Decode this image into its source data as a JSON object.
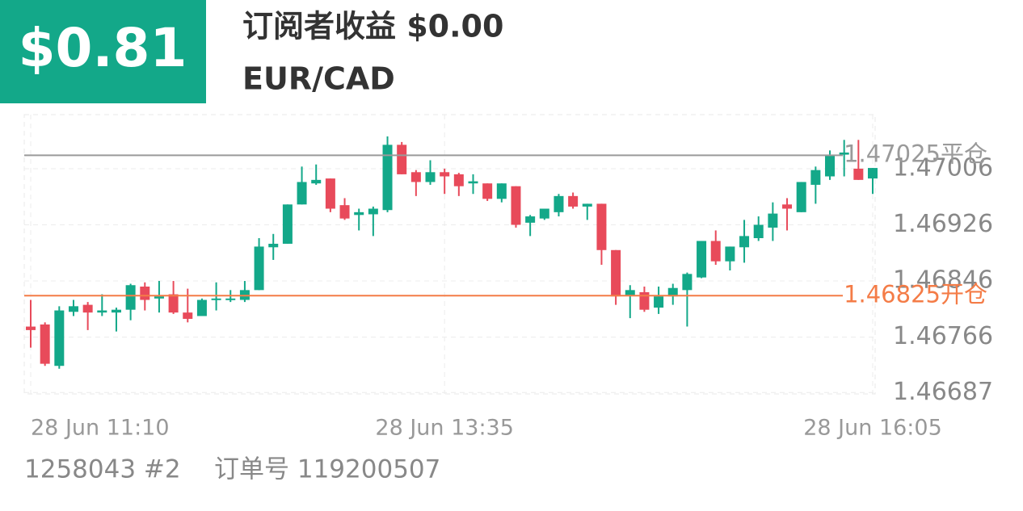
{
  "header": {
    "badge": "$0.81",
    "title": "订阅者收益 $0.00",
    "symbol": "EUR/CAD"
  },
  "chart_data": {
    "type": "candlestick",
    "categories": [
      "28 Jun 11:10",
      null,
      null,
      null,
      null,
      null,
      null,
      null,
      null,
      null,
      null,
      null,
      null,
      null,
      null,
      null,
      null,
      null,
      null,
      null,
      null,
      null,
      null,
      null,
      null,
      null,
      null,
      null,
      null,
      "28 Jun 13:35",
      null,
      null,
      null,
      null,
      null,
      null,
      null,
      null,
      null,
      null,
      null,
      null,
      null,
      null,
      null,
      null,
      null,
      null,
      null,
      null,
      null,
      null,
      null,
      null,
      null,
      null,
      null,
      null,
      null,
      "28 Jun 16:05"
    ],
    "open": [
      1.46781,
      1.46784,
      1.46725,
      1.46802,
      1.46812,
      1.46801,
      1.46801,
      1.46805,
      1.46838,
      1.46821,
      1.46827,
      1.46801,
      1.46796,
      1.46819,
      1.46819,
      1.46819,
      1.46833,
      1.46894,
      1.46899,
      1.46955,
      1.46985,
      1.46992,
      1.46954,
      1.4694,
      1.46941,
      1.46947,
      1.4704,
      1.47001,
      1.46987,
      1.47001,
      1.46998,
      1.46985,
      1.46985,
      1.46963,
      1.46981,
      1.46929,
      1.46935,
      1.46944,
      1.46967,
      1.46952,
      1.46956,
      1.4689,
      1.46826,
      1.4683,
      1.46808,
      1.46824,
      1.46833,
      1.46851,
      1.46903,
      1.46874,
      1.46894,
      1.46907,
      1.46922,
      1.46955,
      1.46944,
      1.46983,
      1.46995,
      1.47026,
      1.47006,
      1.46992
    ],
    "high": [
      1.46819,
      1.46787,
      1.4681,
      1.46819,
      1.46816,
      1.46827,
      1.46808,
      1.46842,
      1.46844,
      1.46846,
      1.46846,
      1.46835,
      1.46821,
      1.46844,
      1.46833,
      1.46846,
      1.46907,
      1.46913,
      1.46955,
      1.47009,
      1.47012,
      1.46992,
      1.46964,
      1.46949,
      1.46952,
      1.47052,
      1.47044,
      1.47004,
      1.47018,
      1.47006,
      1.47,
      1.46998,
      1.46985,
      1.46985,
      1.46981,
      1.4694,
      1.46949,
      1.4697,
      1.46972,
      1.46956,
      1.46956,
      1.4689,
      1.4684,
      1.46838,
      1.46838,
      1.46842,
      1.46858,
      1.46903,
      1.46918,
      1.46895,
      1.46933,
      1.46938,
      1.46958,
      1.46964,
      1.46987,
      1.47009,
      1.47032,
      1.47047,
      1.47047,
      1.47007
    ],
    "low": [
      1.46751,
      1.46725,
      1.46721,
      1.46796,
      1.46776,
      1.46796,
      1.46774,
      1.4679,
      1.46804,
      1.46801,
      1.46799,
      1.46787,
      1.46796,
      1.46804,
      1.46816,
      1.46816,
      1.46833,
      1.46876,
      1.46899,
      1.46955,
      1.46983,
      1.46944,
      1.46933,
      1.46918,
      1.4691,
      1.46944,
      1.46998,
      1.46967,
      1.46983,
      1.4697,
      1.46967,
      1.4697,
      1.4696,
      1.46958,
      1.46922,
      1.4691,
      1.46933,
      1.46938,
      1.46949,
      1.46933,
      1.46869,
      1.46812,
      1.46793,
      1.46802,
      1.46799,
      1.46812,
      1.46781,
      1.4685,
      1.46869,
      1.46861,
      1.46872,
      1.46903,
      1.46903,
      1.46918,
      1.46944,
      1.46956,
      1.4699,
      1.46995,
      1.4699,
      1.4697
    ],
    "close": [
      1.46776,
      1.46728,
      1.46804,
      1.4681,
      1.46801,
      1.46804,
      1.46805,
      1.4684,
      1.46819,
      1.46824,
      1.46801,
      1.46792,
      1.46819,
      1.46821,
      1.46821,
      1.46833,
      1.46895,
      1.46899,
      1.46955,
      1.46987,
      1.4699,
      1.46949,
      1.46935,
      1.46944,
      1.46949,
      1.4704,
      1.46998,
      1.46987,
      1.47001,
      1.46995,
      1.46981,
      1.46988,
      1.46963,
      1.46985,
      1.46926,
      1.46938,
      1.46949,
      1.46967,
      1.46952,
      1.46956,
      1.4689,
      1.46824,
      1.46833,
      1.46805,
      1.46824,
      1.46836,
      1.46856,
      1.46903,
      1.46874,
      1.46895,
      1.4691,
      1.46926,
      1.46942,
      1.46949,
      1.46987,
      1.47004,
      1.47026,
      1.47029,
      1.4699,
      1.47007
    ],
    "up_color": "#13a889",
    "down_color": "#e84a5a",
    "ylim": [
      1.46685,
      1.47083
    ],
    "yticks": [
      1.46687,
      1.46766,
      1.46846,
      1.46926,
      1.47006
    ],
    "grid": true,
    "annotations": [
      {
        "value": 1.47025,
        "label": "1.47025平仓",
        "color": "#9a9a9a"
      },
      {
        "value": 1.46825,
        "label": "1.46825开仓",
        "color": "#f47c47"
      }
    ]
  },
  "footer": {
    "account": "1258043 #2",
    "order": "订单号 119200507"
  }
}
